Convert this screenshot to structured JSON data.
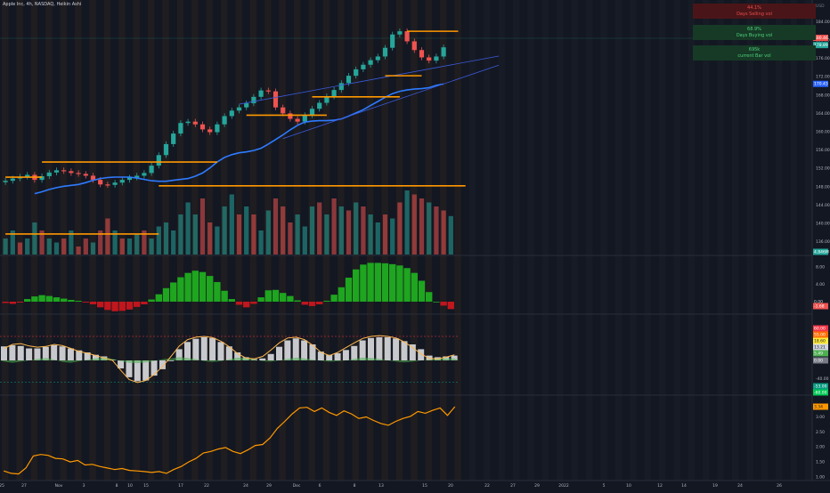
{
  "header": {
    "symbol_line": "Apple Inc, 4h, NASDAQ, Heikin Ashi"
  },
  "info_panel": {
    "box1": {
      "value": "44.1%",
      "label": "Days Selling vol",
      "bg": "#4a1518",
      "fg": "#e84e4e"
    },
    "box2": {
      "value": "68.9%",
      "label": "Days Buying vol",
      "bg": "#163a26",
      "fg": "#4fd17a"
    },
    "box3": {
      "value": "695k",
      "label": "current Bar vol",
      "bg": "#163a26",
      "fg": "#4fd17a"
    }
  },
  "price_axis": {
    "currency": "USD",
    "ticks": [
      "184.00",
      "180.00",
      "176.00",
      "172.00",
      "168.00",
      "164.00",
      "160.00",
      "156.00",
      "152.00",
      "148.00",
      "144.00",
      "140.00",
      "136.00"
    ],
    "badges": [
      {
        "text": "180.46",
        "color": "#ef5350"
      },
      {
        "text": "178.89",
        "color": "#26a69a"
      },
      {
        "text": "170.43",
        "color": "#2962ff"
      },
      {
        "text": "4.846M",
        "color": "#26a69a"
      }
    ]
  },
  "oscillator1_axis": {
    "ticks": [
      "8.00",
      "4.00",
      "0.00"
    ],
    "badge": {
      "text": "-1.68",
      "color": "#ef5350"
    },
    "zero_label": "0.00"
  },
  "oscillator2_axis": {
    "ticks": [
      "-40.00"
    ],
    "badges": [
      {
        "text": "60.00",
        "color": "#f23645"
      },
      {
        "text": "55.00",
        "color": "#ff6d00"
      },
      {
        "text": "18.60",
        "color": "#ffeb3b"
      },
      {
        "text": "13.21",
        "color": "#d1d4dc"
      },
      {
        "text": "5.49",
        "color": "#4caf50"
      },
      {
        "text": "0.00",
        "color": "#787b86"
      },
      {
        "text": "-53.00",
        "color": "#089981"
      },
      {
        "text": "-60.00",
        "color": "#00c853"
      }
    ]
  },
  "oscillator3_axis": {
    "ticks": [
      "3.00",
      "2.50",
      "2.00",
      "1.50",
      "1.00"
    ],
    "badge": {
      "text": "3.34",
      "color": "#ff9800"
    }
  },
  "time_axis": [
    "25",
    "27",
    "Nov",
    "3",
    "8",
    "10",
    "15",
    "17",
    "22",
    "24",
    "29",
    "Dec",
    "6",
    "8",
    "13",
    "15",
    "20",
    "22",
    "27",
    "29",
    "2022",
    "5",
    "10",
    "12",
    "14",
    "19",
    "24",
    "26"
  ],
  "colors": {
    "bull": "#26a69a",
    "bear": "#ef5350",
    "ma": "#2e7bff",
    "orange": "#ff9800",
    "osc_green": "#1fa51f",
    "osc_red": "#c0161d",
    "channel": "#3b5bdb"
  },
  "chart_data": {
    "type": "candlestick",
    "price_ylim": [
      134,
      186
    ],
    "price_close_path": [
      149,
      149.3,
      149.8,
      150.2,
      150.6,
      149.5,
      150.3,
      151.1,
      151.6,
      151.4,
      151,
      150.8,
      150.4,
      149.5,
      148.5,
      148.4,
      148.9,
      149.5,
      150,
      150.4,
      151,
      152.6,
      154.9,
      157.3,
      159.6,
      161.9,
      162.2,
      161.6,
      160.5,
      159.9,
      161.6,
      163.4,
      164.6,
      165.3,
      166.2,
      167.6,
      169,
      168.8,
      165.3,
      164,
      162.8,
      162.2,
      163.6,
      165,
      166.3,
      167.7,
      169.1,
      170.6,
      172.2,
      173.6,
      174.6,
      175.6,
      176.4,
      178.3,
      181.2,
      181.9,
      179.7,
      177.8,
      176.2,
      175.5,
      176.4,
      178.4
    ],
    "ma_path": [
      146.5,
      146.9,
      147.4,
      147.8,
      148.1,
      148.3,
      148.5,
      148.9,
      149.4,
      149.8,
      150,
      150.1,
      150.1,
      150.1,
      149.9,
      149.6,
      149.3,
      149.2,
      149.2,
      149.4,
      149.6,
      149.8,
      150.3,
      151,
      152.1,
      153.4,
      154.4,
      155,
      155.4,
      155.6,
      155.9,
      156.4,
      157.3,
      158.3,
      159.3,
      160.4,
      161.4,
      162.1,
      162.3,
      162.4,
      162.4,
      162.5,
      162.8,
      163.4,
      164.1,
      164.8,
      165.7,
      166.6,
      167.5,
      168.3,
      168.8,
      169.1,
      169.3,
      169.4,
      169.6,
      170.1,
      170.4
    ],
    "key_levels": [
      {
        "price": 181.9,
        "from_bar": 55,
        "to_bar": 62
      },
      {
        "price": 172.2,
        "from_bar": 52,
        "to_bar": 57
      },
      {
        "price": 167.6,
        "from_bar": 42,
        "to_bar": 54
      },
      {
        "price": 163.6,
        "from_bar": 33,
        "to_bar": 44
      },
      {
        "price": 153.4,
        "from_bar": 5,
        "to_bar": 29
      },
      {
        "price": 150.1,
        "from_bar": 0,
        "to_bar": 5
      },
      {
        "price": 148.2,
        "from_bar": 21,
        "to_bar": 63
      },
      {
        "price": 137.7,
        "from_bar": 0,
        "to_bar": 21
      }
    ],
    "volume": [
      2,
      3,
      1.5,
      2,
      4,
      3,
      2,
      1.5,
      2,
      3,
      1,
      2,
      1.5,
      3,
      4.5,
      3,
      2,
      2,
      2.5,
      3,
      2,
      3.5,
      4,
      3,
      5,
      6.5,
      5,
      7,
      4,
      3.5,
      6,
      7.5,
      5,
      6,
      5,
      3,
      5.5,
      7,
      6,
      4,
      5,
      3.5,
      6,
      6.5,
      5,
      7,
      6,
      5.5,
      6.5,
      6,
      5,
      4,
      5,
      4.5,
      6.5,
      8,
      7.5,
      7,
      6.5,
      6,
      5.5,
      4.8
    ],
    "volume_colors": [
      "g",
      "g",
      "r",
      "g",
      "g",
      "r",
      "g",
      "g",
      "r",
      "g",
      "r",
      "r",
      "g",
      "r",
      "r",
      "g",
      "r",
      "g",
      "g",
      "r",
      "g",
      "g",
      "g",
      "g",
      "g",
      "g",
      "g",
      "r",
      "r",
      "g",
      "g",
      "g",
      "r",
      "g",
      "r",
      "g",
      "g",
      "r",
      "r",
      "r",
      "g",
      "g",
      "g",
      "r",
      "g",
      "r",
      "g",
      "r",
      "g",
      "r",
      "g",
      "g",
      "r",
      "g",
      "r",
      "g",
      "r",
      "r",
      "g",
      "r",
      "r",
      "g"
    ],
    "osc1": [
      -0.3,
      -0.5,
      -0.2,
      0.6,
      1.2,
      1.5,
      1.3,
      1,
      0.7,
      0.4,
      0.2,
      -0.2,
      -0.6,
      -1.3,
      -1.9,
      -2.2,
      -2.1,
      -1.8,
      -1.2,
      -0.6,
      0.5,
      1.7,
      3.1,
      4.4,
      5.6,
      6.6,
      7.1,
      6.8,
      5.9,
      4.5,
      2.5,
      0.6,
      -0.7,
      -1.3,
      -0.5,
      1,
      2.6,
      2.7,
      2,
      1.3,
      0.3,
      -0.7,
      -1,
      -0.6,
      0.2,
      1.6,
      3.3,
      5.5,
      7.4,
      8.5,
      8.9,
      8.9,
      8.8,
      8.6,
      8.3,
      7.7,
      6.6,
      4.8,
      2.2,
      0,
      -0.9,
      -1.7
    ],
    "osc2_hist": [
      35,
      38,
      36,
      30,
      30,
      34,
      38,
      35,
      30,
      25,
      20,
      14,
      10,
      2,
      -20,
      -42,
      -52,
      -50,
      -38,
      -22,
      0,
      28,
      46,
      54,
      58,
      56,
      46,
      35,
      20,
      8,
      3,
      5,
      16,
      34,
      50,
      55,
      50,
      40,
      22,
      14,
      18,
      26,
      36,
      50,
      56,
      58,
      58,
      55,
      48,
      40,
      28,
      12,
      8,
      10,
      12
    ],
    "osc2_line": [
      30,
      40,
      42,
      36,
      33,
      35,
      40,
      37,
      30,
      22,
      18,
      12,
      6,
      0,
      -25,
      -48,
      -55,
      -50,
      -35,
      -15,
      10,
      36,
      52,
      58,
      60,
      57,
      48,
      34,
      17,
      6,
      4,
      10,
      26,
      44,
      56,
      58,
      52,
      38,
      20,
      12,
      20,
      32,
      44,
      55,
      60,
      62,
      60,
      56,
      46,
      32,
      16,
      5,
      4,
      8,
      14
    ],
    "osc2_area": [
      -3,
      -6,
      -3,
      0,
      4,
      6,
      2,
      -4,
      -6,
      -2,
      2,
      5,
      8,
      4,
      -2,
      -6,
      -7,
      -5,
      -2,
      3,
      5,
      8,
      6,
      3,
      -2,
      -4,
      -2,
      3,
      7,
      6,
      2,
      -2,
      -3,
      0,
      4,
      7,
      5,
      2,
      -1,
      -3,
      -2,
      0,
      4,
      7,
      6,
      4,
      0,
      -3,
      -5,
      -3,
      0,
      2,
      4,
      5,
      5
    ],
    "osc3_line": [
      1.2,
      1.12,
      1.1,
      1.3,
      1.7,
      1.75,
      1.72,
      1.62,
      1.6,
      1.5,
      1.55,
      1.4,
      1.42,
      1.35,
      1.3,
      1.25,
      1.28,
      1.22,
      1.2,
      1.18,
      1.15,
      1.18,
      1.12,
      1.25,
      1.35,
      1.5,
      1.62,
      1.8,
      1.85,
      1.93,
      1.98,
      1.85,
      1.78,
      1.9,
      2.05,
      2.08,
      2.3,
      2.62,
      2.85,
      3.1,
      3.3,
      3.32,
      3.18,
      3.3,
      3.15,
      3.05,
      3.2,
      3.1,
      2.95,
      3,
      2.88,
      2.78,
      2.72,
      2.85,
      2.95,
      3.02,
      3.18,
      3.12,
      3.22,
      3.3,
      3.05,
      3.34
    ]
  }
}
